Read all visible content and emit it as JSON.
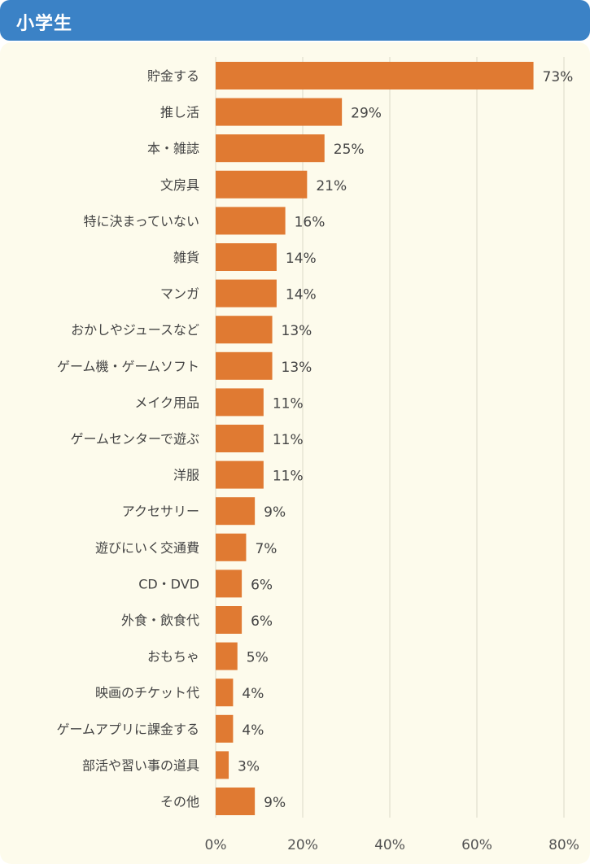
{
  "header": {
    "title": "小学生"
  },
  "colors": {
    "header": "#3b82c6",
    "bar": "#e07a32",
    "panel": "#fdfbec",
    "grid": "#dcd9c7",
    "text": "#444444"
  },
  "chart_data": {
    "type": "bar",
    "orientation": "horizontal",
    "title": "",
    "xlabel": "",
    "ylabel": "",
    "xlim": [
      0,
      80
    ],
    "grid": true,
    "categories": [
      "貯金する",
      "推し活",
      "本・雑誌",
      "文房具",
      "特に決まっていない",
      "雑貨",
      "マンガ",
      "おかしやジュースなど",
      "ゲーム機・ゲームソフト",
      "メイク用品",
      "ゲームセンターで遊ぶ",
      "洋服",
      "アクセサリー",
      "遊びにいく交通費",
      "CD・DVD",
      "外食・飲食代",
      "おもちゃ",
      "映画のチケット代",
      "ゲームアプリに課金する",
      "部活や習い事の道具",
      "その他"
    ],
    "values": [
      73,
      29,
      25,
      21,
      16,
      14,
      14,
      13,
      13,
      11,
      11,
      11,
      9,
      7,
      6,
      6,
      5,
      4,
      4,
      3,
      9
    ],
    "value_labels": [
      "73%",
      "29%",
      "25%",
      "21%",
      "16%",
      "14%",
      "14%",
      "13%",
      "13%",
      "11%",
      "11%",
      "11%",
      "9%",
      "7%",
      "6%",
      "6%",
      "5%",
      "4%",
      "4%",
      "3%",
      "9%"
    ],
    "x_ticks": [
      0,
      20,
      40,
      60,
      80
    ],
    "x_tick_labels": [
      "0%",
      "20%",
      "40%",
      "60%",
      "80%"
    ]
  }
}
